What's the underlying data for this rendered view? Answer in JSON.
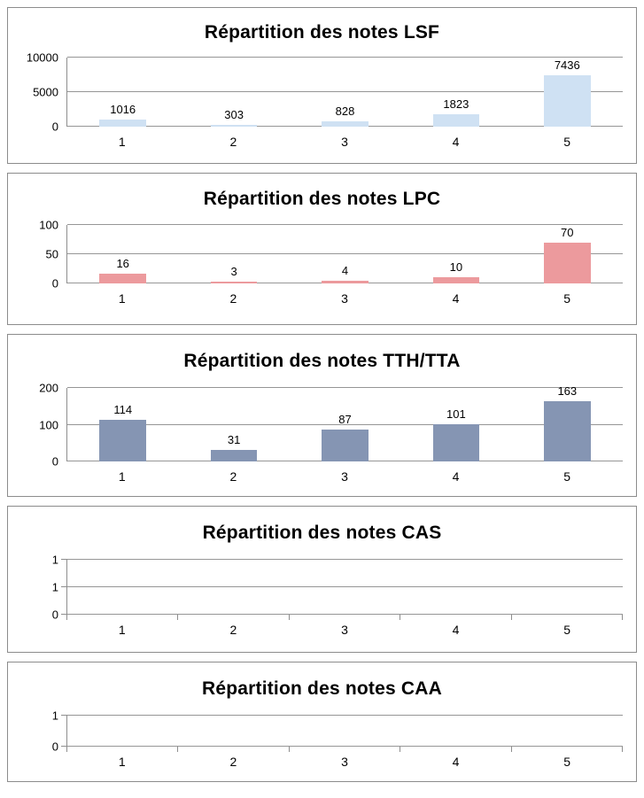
{
  "page": {
    "background": "#ffffff",
    "panel_border_color": "#8c8c8c",
    "gridline_color": "#969696"
  },
  "chart_data": [
    {
      "type": "bar",
      "title": "Répartition des notes LSF",
      "categories": [
        "1",
        "2",
        "3",
        "4",
        "5"
      ],
      "values": [
        1016,
        303,
        828,
        1823,
        7436
      ],
      "bar_labels": [
        "1016",
        "303",
        "828",
        "1823",
        "7436"
      ],
      "xlabel": "",
      "ylabel": "",
      "ylim": [
        0,
        10000
      ],
      "yticks": [
        {
          "label": "10000",
          "value": 10000
        },
        {
          "label": "5000",
          "value": 5000
        },
        {
          "label": "0",
          "value": 0
        }
      ],
      "bar_color": "#cfe1f3",
      "grid": true,
      "legend": "none",
      "axis_ticks": false
    },
    {
      "type": "bar",
      "title": "Répartition des notes LPC",
      "categories": [
        "1",
        "2",
        "3",
        "4",
        "5"
      ],
      "values": [
        16,
        3,
        4,
        10,
        70
      ],
      "bar_labels": [
        "16",
        "3",
        "4",
        "10",
        "70"
      ],
      "xlabel": "",
      "ylabel": "",
      "ylim": [
        0,
        100
      ],
      "yticks": [
        {
          "label": "100",
          "value": 100
        },
        {
          "label": "50",
          "value": 50
        },
        {
          "label": "0",
          "value": 0
        }
      ],
      "bar_color": "#ec9a9d",
      "grid": true,
      "legend": "none",
      "axis_ticks": false
    },
    {
      "type": "bar",
      "title": "Répartition des notes TTH/TTA",
      "categories": [
        "1",
        "2",
        "3",
        "4",
        "5"
      ],
      "values": [
        114,
        31,
        87,
        101,
        163
      ],
      "bar_labels": [
        "114",
        "31",
        "87",
        "101",
        "163"
      ],
      "xlabel": "",
      "ylabel": "",
      "ylim": [
        0,
        200
      ],
      "yticks": [
        {
          "label": "200",
          "value": 200
        },
        {
          "label": "100",
          "value": 100
        },
        {
          "label": "0",
          "value": 0
        }
      ],
      "bar_color": "#8595b3",
      "grid": true,
      "legend": "none",
      "axis_ticks": false
    },
    {
      "type": "bar",
      "title": "Répartition des notes CAS",
      "categories": [
        "1",
        "2",
        "3",
        "4",
        "5"
      ],
      "values": [
        0,
        0,
        0,
        0,
        0
      ],
      "bar_labels": [],
      "xlabel": "",
      "ylabel": "",
      "ylim": [
        0,
        1
      ],
      "yticks": [
        {
          "label": "1",
          "value": 1
        },
        {
          "label": "1",
          "value": 0.5
        },
        {
          "label": "0",
          "value": 0
        }
      ],
      "bar_color": "#cfe1f3",
      "grid": true,
      "legend": "none",
      "axis_ticks": true
    },
    {
      "type": "bar",
      "title": "Répartition des notes CAA",
      "categories": [
        "1",
        "2",
        "3",
        "4",
        "5"
      ],
      "values": [
        0,
        0,
        0,
        0,
        0
      ],
      "bar_labels": [],
      "xlabel": "",
      "ylabel": "",
      "ylim": [
        0,
        1
      ],
      "yticks": [
        {
          "label": "1",
          "value": 1
        },
        {
          "label": "0",
          "value": 0
        }
      ],
      "bar_color": "#cfe1f3",
      "grid": true,
      "legend": "none",
      "axis_ticks": true
    }
  ]
}
